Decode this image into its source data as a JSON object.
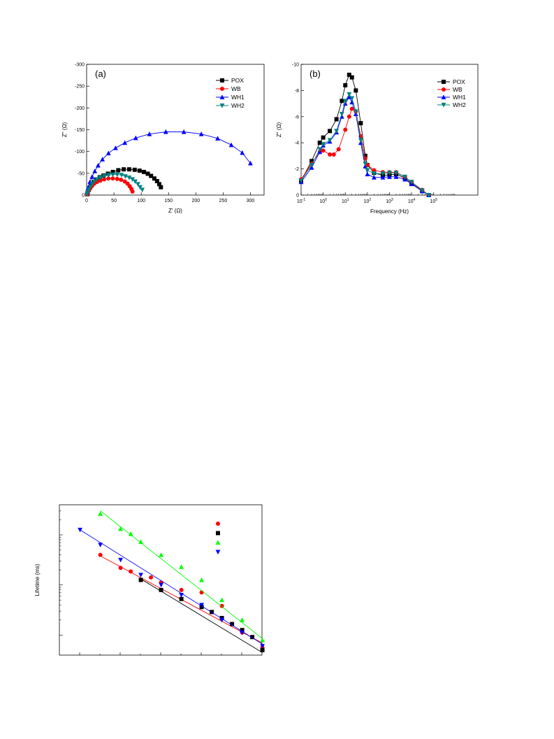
{
  "chart_data": [
    {
      "type": "scatter",
      "panel_label": "(a)",
      "xlabel": "Z' (Ω)",
      "ylabel": "Z'' (Ω)",
      "xlim": [
        0,
        325
      ],
      "ylim": [
        0,
        -300
      ],
      "x_ticks": [
        0,
        50,
        100,
        150,
        200,
        250,
        300
      ],
      "y_ticks": [
        0,
        -50,
        -100,
        -150,
        -200,
        -250,
        -300
      ],
      "legend_position": "top-right",
      "series": [
        {
          "name": "POX",
          "color": "#000000",
          "marker": "square",
          "x": [
            1,
            2,
            4,
            6,
            9,
            13,
            18,
            24,
            31,
            39,
            48,
            58,
            68,
            78,
            88,
            97,
            105,
            112,
            118,
            124,
            129,
            133,
            136
          ],
          "y": [
            -2,
            -6,
            -12,
            -18,
            -24,
            -30,
            -36,
            -41,
            -45,
            -49,
            -53,
            -57,
            -59,
            -59,
            -58,
            -56,
            -53,
            -49,
            -44,
            -38,
            -32,
            -25,
            -18
          ]
        },
        {
          "name": "WB",
          "color": "#ff0000",
          "marker": "circle",
          "x": [
            1,
            2,
            4,
            7,
            10,
            14,
            19,
            25,
            32,
            40,
            48,
            56,
            63,
            70,
            75,
            79,
            82,
            84
          ],
          "y": [
            -2,
            -6,
            -11,
            -16,
            -21,
            -26,
            -30,
            -33,
            -36,
            -38,
            -38,
            -37,
            -35,
            -31,
            -26,
            -20,
            -14,
            -8
          ]
        },
        {
          "name": "WH1",
          "color": "#0000ff",
          "marker": "triangle-up",
          "x": [
            1,
            3,
            6,
            10,
            15,
            21,
            29,
            40,
            53,
            70,
            90,
            115,
            145,
            178,
            210,
            240,
            265,
            285,
            300
          ],
          "y": [
            -8,
            -18,
            -30,
            -42,
            -55,
            -68,
            -82,
            -96,
            -108,
            -120,
            -131,
            -140,
            -145,
            -145,
            -140,
            -130,
            -115,
            -97,
            -73
          ]
        },
        {
          "name": "WH2",
          "color": "#008080",
          "marker": "triangle-down",
          "x": [
            1,
            2,
            4,
            7,
            10,
            14,
            19,
            25,
            32,
            40,
            48,
            56,
            64,
            71,
            78,
            84,
            89,
            94,
            98,
            102
          ],
          "y": [
            -2,
            -7,
            -13,
            -19,
            -25,
            -31,
            -36,
            -40,
            -44,
            -46,
            -47,
            -47,
            -46,
            -43,
            -40,
            -36,
            -31,
            -25,
            -18,
            -12
          ]
        }
      ]
    },
    {
      "type": "line",
      "panel_label": "(b)",
      "xlabel": "Frequency (Hz)",
      "ylabel": "Z'' (Ω)",
      "x_scale": "log",
      "xlim": [
        0.1,
        10000000
      ],
      "ylim": [
        0,
        -10
      ],
      "x_ticks": [
        0.1,
        1,
        10,
        100,
        1000,
        10000,
        100000
      ],
      "x_tick_labels": [
        {
          "base": "10",
          "exp": "-1"
        },
        {
          "base": "10",
          "exp": "0"
        },
        {
          "base": "10",
          "exp": "1"
        },
        {
          "base": "10",
          "exp": "2"
        },
        {
          "base": "10",
          "exp": "3"
        },
        {
          "base": "10",
          "exp": "4"
        },
        {
          "base": "10",
          "exp": "5"
        }
      ],
      "y_ticks": [
        0,
        -2,
        -4,
        -6,
        -8,
        -10
      ],
      "legend_position": "top-right",
      "series": [
        {
          "name": "POX",
          "color": "#000000",
          "marker": "square",
          "points": [
            [
              0.1,
              -1.1
            ],
            [
              0.3,
              -2.6
            ],
            [
              0.7,
              -4.0
            ],
            [
              1,
              -4.4
            ],
            [
              2,
              -4.9
            ],
            [
              4,
              -5.8
            ],
            [
              7,
              -7.2
            ],
            [
              10,
              -8.4
            ],
            [
              15,
              -9.2
            ],
            [
              20,
              -9.0
            ],
            [
              30,
              -8.0
            ],
            [
              50,
              -5.5
            ],
            [
              80,
              -3.0
            ],
            [
              100,
              -2.3
            ],
            [
              200,
              -1.7
            ],
            [
              500,
              -1.5
            ],
            [
              1000,
              -1.55
            ],
            [
              2000,
              -1.6
            ],
            [
              5000,
              -1.3
            ],
            [
              10000,
              -0.9
            ],
            [
              30000,
              -0.3
            ],
            [
              60000,
              0
            ]
          ]
        },
        {
          "name": "WB",
          "color": "#ff0000",
          "marker": "circle",
          "points": [
            [
              0.1,
              -1.2
            ],
            [
              0.3,
              -2.4
            ],
            [
              0.7,
              -3.3
            ],
            [
              1,
              -3.4
            ],
            [
              2,
              -3.1
            ],
            [
              3,
              -3.1
            ],
            [
              5,
              -3.5
            ],
            [
              10,
              -5.0
            ],
            [
              15,
              -6.0
            ],
            [
              20,
              -6.6
            ],
            [
              30,
              -6.4
            ],
            [
              50,
              -4.5
            ],
            [
              80,
              -2.8
            ],
            [
              100,
              -2.3
            ],
            [
              200,
              -1.9
            ],
            [
              500,
              -1.75
            ],
            [
              1000,
              -1.75
            ],
            [
              2000,
              -1.75
            ],
            [
              5000,
              -1.4
            ],
            [
              10000,
              -1.0
            ],
            [
              30000,
              -0.4
            ],
            [
              60000,
              0
            ]
          ]
        },
        {
          "name": "WH1",
          "color": "#0000ff",
          "marker": "triangle-up",
          "points": [
            [
              0.1,
              -1.0
            ],
            [
              0.3,
              -2.1
            ],
            [
              0.7,
              -3.3
            ],
            [
              1,
              -3.8
            ],
            [
              2,
              -4.1
            ],
            [
              4,
              -4.8
            ],
            [
              7,
              -6.0
            ],
            [
              10,
              -7.0
            ],
            [
              15,
              -7.5
            ],
            [
              20,
              -7.1
            ],
            [
              30,
              -6.2
            ],
            [
              50,
              -4.0
            ],
            [
              80,
              -2.2
            ],
            [
              100,
              -1.6
            ],
            [
              200,
              -1.35
            ],
            [
              500,
              -1.35
            ],
            [
              1000,
              -1.4
            ],
            [
              2000,
              -1.4
            ],
            [
              5000,
              -1.2
            ],
            [
              10000,
              -0.85
            ],
            [
              30000,
              -0.3
            ],
            [
              60000,
              0
            ]
          ]
        },
        {
          "name": "WH2",
          "color": "#008080",
          "marker": "triangle-down",
          "points": [
            [
              0.1,
              -1.1
            ],
            [
              0.3,
              -2.3
            ],
            [
              0.7,
              -3.5
            ],
            [
              1,
              -3.9
            ],
            [
              2,
              -4.2
            ],
            [
              4,
              -4.9
            ],
            [
              7,
              -6.2
            ],
            [
              10,
              -7.2
            ],
            [
              15,
              -7.7
            ],
            [
              20,
              -7.4
            ],
            [
              30,
              -6.4
            ],
            [
              50,
              -4.2
            ],
            [
              80,
              -2.4
            ],
            [
              100,
              -1.9
            ],
            [
              200,
              -1.65
            ],
            [
              500,
              -1.65
            ],
            [
              1000,
              -1.7
            ],
            [
              2000,
              -1.7
            ],
            [
              5000,
              -1.4
            ],
            [
              10000,
              -1.0
            ],
            [
              30000,
              -0.35
            ],
            [
              60000,
              0
            ]
          ]
        }
      ]
    },
    {
      "type": "scatter",
      "panel_label": "",
      "xlabel": "",
      "ylabel": "Lifetime (ms)",
      "y_scale": "log",
      "xlim": [
        0,
        10
      ],
      "ylim": [
        0,
        3
      ],
      "legend_position": "top-right",
      "series": [
        {
          "name": "",
          "color": "#ff0000",
          "marker": "circle",
          "x": [
            2,
            3,
            3.5,
            4.5,
            5,
            6,
            7,
            8,
            9,
            10
          ],
          "y": [
            2.0,
            1.74,
            1.67,
            1.55,
            1.45,
            1.3,
            1.25,
            0.98,
            0.45,
            0.15
          ],
          "fit": [
            [
              2,
              1.98
            ],
            [
              10,
              0.24
            ]
          ]
        },
        {
          "name": "",
          "color": "#000000",
          "marker": "square",
          "x": [
            4,
            5,
            6,
            7,
            7.5,
            8,
            8.5,
            9,
            9.5,
            10
          ],
          "y": [
            1.5,
            1.3,
            1.12,
            0.96,
            0.86,
            0.74,
            0.62,
            0.5,
            0.36,
            0.1
          ],
          "fit": [
            [
              4,
              1.52
            ],
            [
              10,
              0.05
            ]
          ]
        },
        {
          "name": "",
          "color": "#00ff00",
          "marker": "triangle-up",
          "x": [
            2,
            3,
            3.5,
            4,
            5,
            6,
            7,
            8,
            9,
            10
          ],
          "y": [
            2.82,
            2.52,
            2.42,
            2.26,
            2.0,
            1.76,
            1.5,
            1.1,
            0.7,
            0.3
          ],
          "fit": [
            [
              2,
              2.88
            ],
            [
              10,
              0.33
            ]
          ]
        },
        {
          "name": "",
          "color": "#0000ff",
          "marker": "triangle-down",
          "x": [
            1,
            2,
            3,
            4,
            5,
            6,
            7,
            8,
            9,
            10
          ],
          "y": [
            2.5,
            2.2,
            1.9,
            1.6,
            1.4,
            1.2,
            1.0,
            0.7,
            0.45,
            0.18
          ],
          "fit": [
            [
              1,
              2.5
            ],
            [
              10,
              0.22
            ]
          ]
        }
      ]
    }
  ]
}
